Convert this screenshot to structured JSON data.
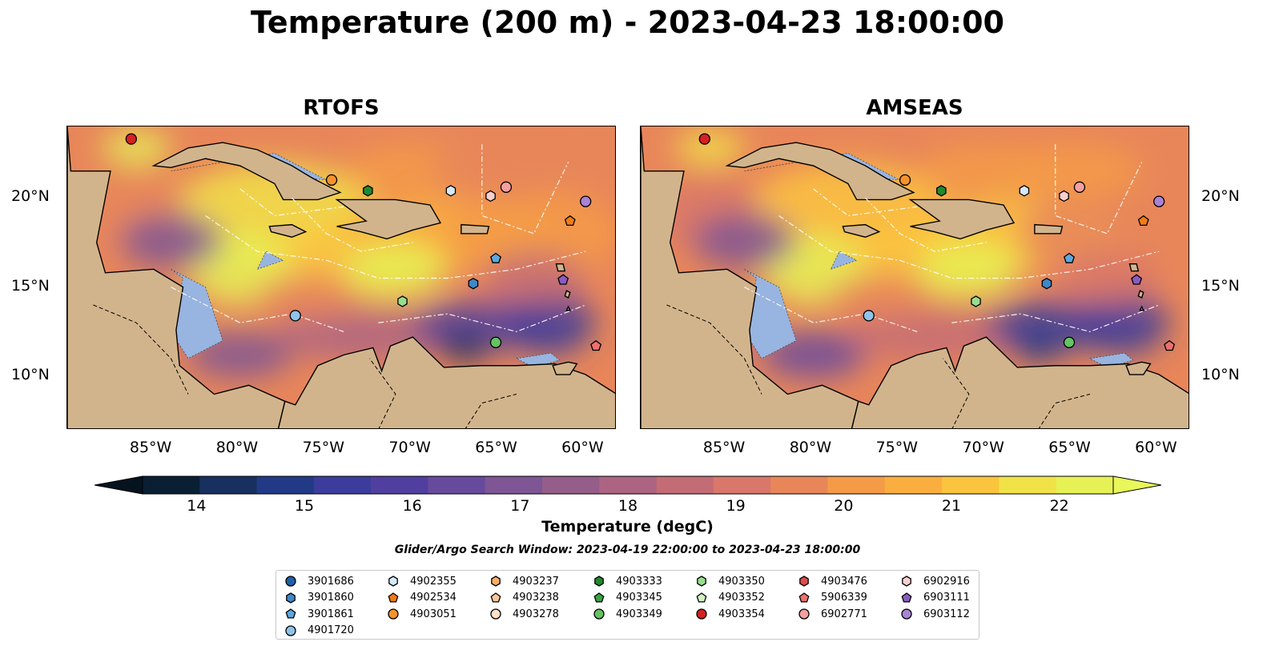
{
  "title": "Temperature (200 m) - 2023-04-23 18:00:00",
  "panels": [
    {
      "title": "RTOFS"
    },
    {
      "title": "AMSEAS"
    }
  ],
  "lon_ticks": [
    "85°W",
    "80°W",
    "75°W",
    "70°W",
    "65°W",
    "60°W"
  ],
  "lat_ticks": [
    "20°N",
    "15°N",
    "10°N"
  ],
  "colorbar": {
    "label": "Temperature (degC)",
    "ticks": [
      "14",
      "15",
      "16",
      "17",
      "18",
      "19",
      "20",
      "21",
      "22"
    ],
    "min": 13.5,
    "max": 22.5,
    "colors": [
      "#0a1f33",
      "#17305f",
      "#223a86",
      "#3b3c9b",
      "#513f9f",
      "#684a9d",
      "#7e5595",
      "#955e8a",
      "#ad6482",
      "#c46c76",
      "#d8776a",
      "#e8865a",
      "#f49b48",
      "#faae3f",
      "#fbc43e",
      "#f1e249",
      "#e6f155"
    ],
    "colors_ext_low": "#05131f",
    "colors_ext_high": "#e8f75a"
  },
  "search_window": "Glider/Argo Search Window: 2023-04-19 22:00:00 to 2023-04-23 18:00:00",
  "map_colors": {
    "land": "#d2b48c",
    "shelf": "#98b4e0",
    "deep_cold": "#0a1f33"
  },
  "legend": {
    "columns": [
      [
        {
          "id": "3901686",
          "marker": "circle",
          "color": "#1f5fa8"
        },
        {
          "id": "3901860",
          "marker": "hexagon",
          "color": "#3f88c8"
        },
        {
          "id": "3901861",
          "marker": "pentagon",
          "color": "#5ea7dc"
        },
        {
          "id": "4901720",
          "marker": "circle",
          "color": "#8fc3ea"
        }
      ],
      [
        {
          "id": "4902355",
          "marker": "hexagon",
          "color": "#d4e9f9"
        },
        {
          "id": "4902534",
          "marker": "pentagon",
          "color": "#f07d12"
        },
        {
          "id": "4903051",
          "marker": "circle",
          "color": "#f5922e"
        }
      ],
      [
        {
          "id": "4903237",
          "marker": "hexagon",
          "color": "#f8ad6a"
        },
        {
          "id": "4903238",
          "marker": "pentagon",
          "color": "#fbc79a"
        },
        {
          "id": "4903278",
          "marker": "circle",
          "color": "#fde1c8"
        }
      ],
      [
        {
          "id": "4903333",
          "marker": "hexagon",
          "color": "#1f8a2b"
        },
        {
          "id": "4903345",
          "marker": "pentagon",
          "color": "#3aa444"
        },
        {
          "id": "4903349",
          "marker": "circle",
          "color": "#64c463"
        }
      ],
      [
        {
          "id": "4903350",
          "marker": "hexagon",
          "color": "#98de8e"
        },
        {
          "id": "4903352",
          "marker": "pentagon",
          "color": "#d2f2c4"
        },
        {
          "id": "4903354",
          "marker": "circle",
          "color": "#d62121"
        }
      ],
      [
        {
          "id": "4903476",
          "marker": "hexagon",
          "color": "#e04b4b"
        },
        {
          "id": "5906339",
          "marker": "pentagon",
          "color": "#ec7070"
        },
        {
          "id": "6902771",
          "marker": "circle",
          "color": "#f4a0a0"
        }
      ],
      [
        {
          "id": "6902916",
          "marker": "hexagon",
          "color": "#f8cfcf"
        },
        {
          "id": "6903111",
          "marker": "pentagon",
          "color": "#8a5cc0"
        },
        {
          "id": "6903112",
          "marker": "circle",
          "color": "#a883d6"
        }
      ]
    ]
  },
  "floats": [
    {
      "id": "4903354",
      "lon": -86.3,
      "lat": 23.3
    },
    {
      "id": "4903051",
      "lon": -74.7,
      "lat": 21.0
    },
    {
      "id": "4903333",
      "lon": -72.6,
      "lat": 20.4
    },
    {
      "id": "4902355",
      "lon": -67.8,
      "lat": 20.4
    },
    {
      "id": "6902916",
      "lon": -65.5,
      "lat": 20.1
    },
    {
      "id": "6902771",
      "lon": -64.6,
      "lat": 20.6
    },
    {
      "id": "6903112",
      "lon": -60.0,
      "lat": 19.8
    },
    {
      "id": "4902534",
      "lon": -60.9,
      "lat": 18.7
    },
    {
      "id": "3901861",
      "lon": -65.2,
      "lat": 16.6
    },
    {
      "id": "6903111",
      "lon": -61.3,
      "lat": 15.4
    },
    {
      "id": "3901860",
      "lon": -66.5,
      "lat": 15.2
    },
    {
      "id": "4903350",
      "lon": -70.6,
      "lat": 14.2
    },
    {
      "id": "4901720",
      "lon": -76.8,
      "lat": 13.4
    },
    {
      "id": "4903349",
      "lon": -65.2,
      "lat": 11.9
    },
    {
      "id": "5906339",
      "lon": -59.4,
      "lat": 11.7
    }
  ]
}
